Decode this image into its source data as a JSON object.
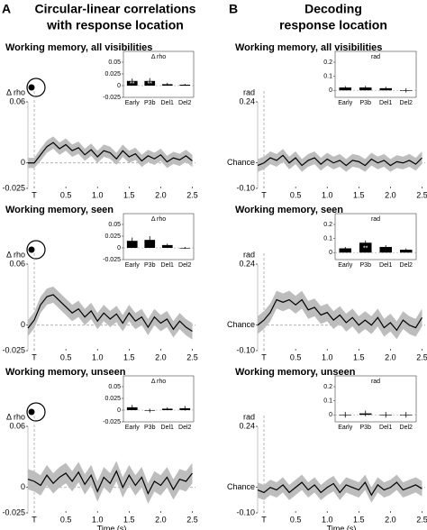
{
  "columns": [
    {
      "label": "A",
      "title": [
        "Circular-linear correlations",
        "with response location"
      ]
    },
    {
      "label": "B",
      "title": [
        "Decoding",
        "response location"
      ]
    }
  ],
  "chart_data": [
    {
      "type": "line",
      "title": "Working memory, all visibilities",
      "ylabel": "Δ rho",
      "head_icon": true,
      "x": [
        -0.1,
        0,
        0.1,
        0.2,
        0.3,
        0.4,
        0.5,
        0.6,
        0.7,
        0.8,
        0.9,
        1,
        1.1,
        1.2,
        1.3,
        1.4,
        1.5,
        1.6,
        1.7,
        1.8,
        1.9,
        2,
        2.1,
        2.2,
        2.3,
        2.4,
        2.5
      ],
      "values": [
        0.0,
        0.0,
        0.008,
        0.016,
        0.02,
        0.014,
        0.018,
        0.012,
        0.015,
        0.008,
        0.013,
        0.006,
        0.012,
        0.01,
        0.004,
        0.012,
        0.006,
        0.009,
        0.002,
        0.007,
        0.004,
        0.008,
        0.001,
        0.005,
        0.003,
        0.007,
        0.002
      ],
      "errors": [
        0.005,
        0.005,
        0.006,
        0.006,
        0.006,
        0.006,
        0.006,
        0.006,
        0.006,
        0.006,
        0.006,
        0.006,
        0.006,
        0.006,
        0.006,
        0.006,
        0.006,
        0.006,
        0.006,
        0.006,
        0.006,
        0.006,
        0.006,
        0.006,
        0.006,
        0.006,
        0.006
      ],
      "color": "#000000",
      "band_color": "#bdbdbd",
      "xlim": [
        -0.1,
        2.55
      ],
      "xticks": [
        {
          "value": 0,
          "label": "T"
        },
        0.5,
        {
          "value": 1,
          "label": "1.0"
        },
        1.5,
        {
          "value": 2,
          "label": "2.0"
        },
        2.5
      ],
      "ylim": [
        -0.025,
        0.06
      ],
      "yticks": [
        -0.025,
        0,
        0.06
      ],
      "inset": {
        "type": "bar",
        "ylabel": "Δ rho",
        "categories": [
          "Early",
          "P3b",
          "Del1",
          "Del2"
        ],
        "values": [
          0.01,
          0.01,
          0.003,
          0.002
        ],
        "errors": [
          0.005,
          0.006,
          0.003,
          0.002
        ],
        "significance": [
          "**",
          "**",
          null,
          null
        ],
        "color": "#000000",
        "ylim": [
          -0.025,
          0.05
        ],
        "yticks": [
          -0.025,
          0,
          0.025,
          0.05
        ]
      }
    },
    {
      "type": "line",
      "title": "Working memory, seen",
      "ylabel": "Δ rho",
      "head_icon": true,
      "x": [
        -0.1,
        0,
        0.1,
        0.2,
        0.3,
        0.4,
        0.5,
        0.6,
        0.7,
        0.8,
        0.9,
        1,
        1.1,
        1.2,
        1.3,
        1.4,
        1.5,
        1.6,
        1.7,
        1.8,
        1.9,
        2,
        2.1,
        2.2,
        2.3,
        2.4,
        2.5
      ],
      "values": [
        -0.003,
        0.005,
        0.02,
        0.028,
        0.03,
        0.024,
        0.018,
        0.012,
        0.016,
        0.008,
        0.014,
        0.004,
        0.012,
        0.006,
        0.011,
        0.002,
        0.012,
        0.004,
        0.008,
        -0.002,
        0.008,
        0.002,
        0.006,
        -0.004,
        0.004,
        -0.002,
        -0.006
      ],
      "errors": [
        0.008,
        0.008,
        0.008,
        0.008,
        0.008,
        0.008,
        0.008,
        0.008,
        0.008,
        0.008,
        0.008,
        0.008,
        0.008,
        0.008,
        0.008,
        0.008,
        0.008,
        0.008,
        0.008,
        0.008,
        0.008,
        0.008,
        0.008,
        0.008,
        0.008,
        0.008,
        0.008
      ],
      "color": "#000000",
      "band_color": "#bdbdbd",
      "xlim": [
        -0.1,
        2.55
      ],
      "xticks": [
        {
          "value": 0,
          "label": "T"
        },
        0.5,
        {
          "value": 1,
          "label": "1.0"
        },
        1.5,
        {
          "value": 2,
          "label": "2.0"
        },
        2.5
      ],
      "ylim": [
        -0.025,
        0.06
      ],
      "yticks": [
        -0.025,
        0,
        0.06
      ],
      "inset": {
        "type": "bar",
        "ylabel": "Δ rho",
        "categories": [
          "Early",
          "P3b",
          "Del1",
          "Del2"
        ],
        "values": [
          0.015,
          0.017,
          0.006,
          0.0
        ],
        "errors": [
          0.007,
          0.008,
          0.003,
          0.002
        ],
        "significance": [
          null,
          null,
          null,
          null
        ],
        "color": "#000000",
        "ylim": [
          -0.025,
          0.05
        ],
        "yticks": [
          -0.025,
          0,
          0.025,
          0.05
        ]
      }
    },
    {
      "type": "line",
      "title": "Working memory, unseen",
      "ylabel": "Δ rho",
      "head_icon": true,
      "xlabel": "Time (s)",
      "x": [
        -0.1,
        0,
        0.1,
        0.2,
        0.3,
        0.4,
        0.5,
        0.6,
        0.7,
        0.8,
        0.9,
        1,
        1.1,
        1.2,
        1.3,
        1.4,
        1.5,
        1.6,
        1.7,
        1.8,
        1.9,
        2,
        2.1,
        2.2,
        2.3,
        2.4,
        2.5
      ],
      "values": [
        0.008,
        0.006,
        0.002,
        0.012,
        0.004,
        0.01,
        0.014,
        0.006,
        0.015,
        0.003,
        0.012,
        -0.004,
        0.01,
        0.004,
        0.016,
        0.0,
        0.012,
        0.002,
        0.01,
        -0.006,
        0.006,
        0.002,
        0.01,
        -0.002,
        0.008,
        0.006,
        0.014
      ],
      "errors": [
        0.01,
        0.01,
        0.01,
        0.01,
        0.01,
        0.01,
        0.01,
        0.01,
        0.01,
        0.01,
        0.01,
        0.01,
        0.01,
        0.01,
        0.01,
        0.01,
        0.01,
        0.01,
        0.01,
        0.01,
        0.01,
        0.01,
        0.01,
        0.01,
        0.01,
        0.01,
        0.01
      ],
      "color": "#000000",
      "band_color": "#bdbdbd",
      "xlim": [
        -0.1,
        2.55
      ],
      "xticks": [
        {
          "value": 0,
          "label": "T"
        },
        0.5,
        {
          "value": 1,
          "label": "1.0"
        },
        1.5,
        {
          "value": 2,
          "label": "2.0"
        },
        2.5
      ],
      "ylim": [
        -0.025,
        0.06
      ],
      "yticks": [
        -0.025,
        0,
        0.06
      ],
      "inset": {
        "type": "bar",
        "ylabel": "Δ rho",
        "categories": [
          "Early",
          "P3b",
          "Del1",
          "Del2"
        ],
        "values": [
          0.006,
          -0.001,
          0.003,
          0.004
        ],
        "errors": [
          0.005,
          0.004,
          0.003,
          0.005
        ],
        "significance": [
          null,
          null,
          null,
          null
        ],
        "color": "#000000",
        "ylim": [
          -0.025,
          0.05
        ],
        "yticks": [
          -0.025,
          0,
          0.025,
          0.05
        ]
      }
    },
    {
      "type": "line",
      "title": "Working memory, all visibilities",
      "ylabel": "rad",
      "x": [
        -0.1,
        0,
        0.1,
        0.2,
        0.3,
        0.4,
        0.5,
        0.6,
        0.7,
        0.8,
        0.9,
        1,
        1.1,
        1.2,
        1.3,
        1.4,
        1.5,
        1.6,
        1.7,
        1.8,
        1.9,
        2,
        2.1,
        2.2,
        2.3,
        2.4,
        2.5
      ],
      "values": [
        -0.01,
        0.0,
        0.02,
        0.01,
        0.03,
        0.0,
        0.02,
        -0.01,
        0.01,
        0.02,
        -0.005,
        0.015,
        0.0,
        0.01,
        -0.01,
        0.01,
        0.005,
        -0.01,
        0.015,
        0.0,
        0.01,
        -0.01,
        0.005,
        0.0,
        0.01,
        -0.005,
        0.02
      ],
      "errors": [
        0.025,
        0.025,
        0.025,
        0.025,
        0.025,
        0.025,
        0.025,
        0.025,
        0.025,
        0.025,
        0.025,
        0.025,
        0.025,
        0.025,
        0.025,
        0.025,
        0.025,
        0.025,
        0.025,
        0.025,
        0.025,
        0.025,
        0.025,
        0.025,
        0.025,
        0.025,
        0.025
      ],
      "color": "#000000",
      "band_color": "#bdbdbd",
      "xlim": [
        -0.1,
        2.55
      ],
      "xticks": [
        {
          "value": 0,
          "label": "T"
        },
        0.5,
        {
          "value": 1,
          "label": "1.0"
        },
        1.5,
        {
          "value": 2,
          "label": "2.0"
        },
        2.5
      ],
      "ylim": [
        -0.1,
        0.24
      ],
      "yticks": [
        {
          "value": -0.1,
          "label": "-0.10"
        },
        {
          "value": 0,
          "label": "Chance"
        },
        0.24
      ],
      "inset": {
        "type": "bar",
        "ylabel": "rad",
        "categories": [
          "Early",
          "P3b",
          "Del1",
          "Del2"
        ],
        "values": [
          0.02,
          0.02,
          0.015,
          0.0
        ],
        "errors": [
          0.01,
          0.012,
          0.01,
          0.015
        ],
        "significance": [
          null,
          null,
          null,
          null
        ],
        "color": "#000000",
        "ylim": [
          -0.05,
          0.2
        ],
        "yticks": [
          0,
          0.1,
          0.2
        ]
      }
    },
    {
      "type": "line",
      "title": "Working memory, seen",
      "ylabel": "rad",
      "x": [
        -0.1,
        0,
        0.1,
        0.2,
        0.3,
        0.4,
        0.5,
        0.6,
        0.7,
        0.8,
        0.9,
        1,
        1.1,
        1.2,
        1.3,
        1.4,
        1.5,
        1.6,
        1.7,
        1.8,
        1.9,
        2,
        2.1,
        2.2,
        2.3,
        2.4,
        2.5
      ],
      "values": [
        0.0,
        0.02,
        0.05,
        0.1,
        0.09,
        0.1,
        0.08,
        0.1,
        0.06,
        0.07,
        0.04,
        0.05,
        0.02,
        0.04,
        0.01,
        0.03,
        0.0,
        0.02,
        0.0,
        0.03,
        -0.01,
        0.01,
        -0.02,
        0.02,
        0.0,
        -0.01,
        0.03
      ],
      "errors": [
        0.035,
        0.035,
        0.035,
        0.035,
        0.035,
        0.035,
        0.035,
        0.035,
        0.035,
        0.035,
        0.035,
        0.035,
        0.035,
        0.035,
        0.035,
        0.035,
        0.035,
        0.035,
        0.035,
        0.035,
        0.035,
        0.035,
        0.035,
        0.035,
        0.035,
        0.035,
        0.035
      ],
      "color": "#000000",
      "band_color": "#bdbdbd",
      "xlim": [
        -0.1,
        2.55
      ],
      "xticks": [
        {
          "value": 0,
          "label": "T"
        },
        0.5,
        {
          "value": 1,
          "label": "1.0"
        },
        1.5,
        {
          "value": 2,
          "label": "2.0"
        },
        2.5
      ],
      "ylim": [
        -0.1,
        0.24
      ],
      "yticks": [
        {
          "value": -0.1,
          "label": "-0.10"
        },
        {
          "value": 0,
          "label": "Chance"
        },
        0.24
      ],
      "inset": {
        "type": "bar",
        "ylabel": "rad",
        "categories": [
          "Early",
          "P3b",
          "Del1",
          "Del2"
        ],
        "values": [
          0.03,
          0.07,
          0.04,
          0.02
        ],
        "errors": [
          0.01,
          0.015,
          0.012,
          0.01
        ],
        "significance": [
          null,
          "**",
          null,
          null
        ],
        "color": "#000000",
        "ylim": [
          -0.05,
          0.2
        ],
        "yticks": [
          0,
          0.1,
          0.2
        ]
      }
    },
    {
      "type": "line",
      "title": "Working memory, unseen",
      "ylabel": "rad",
      "xlabel": "Time (s)",
      "x": [
        -0.1,
        0,
        0.1,
        0.2,
        0.3,
        0.4,
        0.5,
        0.6,
        0.7,
        0.8,
        0.9,
        1,
        1.1,
        1.2,
        1.3,
        1.4,
        1.5,
        1.6,
        1.7,
        1.8,
        1.9,
        2,
        2.1,
        2.2,
        2.3,
        2.4,
        2.5
      ],
      "values": [
        -0.01,
        -0.02,
        0.0,
        -0.01,
        0.01,
        -0.02,
        0.0,
        0.02,
        -0.01,
        0.01,
        -0.02,
        0.0,
        0.015,
        -0.02,
        0.01,
        0.0,
        -0.01,
        0.02,
        -0.03,
        0.01,
        -0.01,
        0.0,
        0.02,
        -0.01,
        0.0,
        0.01,
        -0.005
      ],
      "errors": [
        0.03,
        0.03,
        0.03,
        0.03,
        0.03,
        0.03,
        0.03,
        0.03,
        0.03,
        0.03,
        0.03,
        0.03,
        0.03,
        0.03,
        0.03,
        0.03,
        0.03,
        0.03,
        0.03,
        0.03,
        0.03,
        0.03,
        0.03,
        0.03,
        0.03,
        0.03,
        0.03
      ],
      "color": "#000000",
      "band_color": "#bdbdbd",
      "xlim": [
        -0.1,
        2.55
      ],
      "xticks": [
        {
          "value": 0,
          "label": "T"
        },
        0.5,
        {
          "value": 1,
          "label": "1.0"
        },
        1.5,
        {
          "value": 2,
          "label": "2.0"
        },
        2.5
      ],
      "ylim": [
        -0.1,
        0.24
      ],
      "yticks": [
        {
          "value": -0.1,
          "label": "-0.10"
        },
        {
          "value": 0,
          "label": "Chance"
        },
        0.24
      ],
      "inset": {
        "type": "bar",
        "ylabel": "rad",
        "categories": [
          "Early",
          "P3b",
          "Del1",
          "Del2"
        ],
        "values": [
          0.0,
          0.01,
          0.0,
          0.0
        ],
        "errors": [
          0.02,
          0.02,
          0.02,
          0.02
        ],
        "significance": [
          null,
          null,
          null,
          null
        ],
        "color": "#000000",
        "ylim": [
          -0.05,
          0.2
        ],
        "yticks": [
          0,
          0.1,
          0.2
        ]
      }
    }
  ]
}
